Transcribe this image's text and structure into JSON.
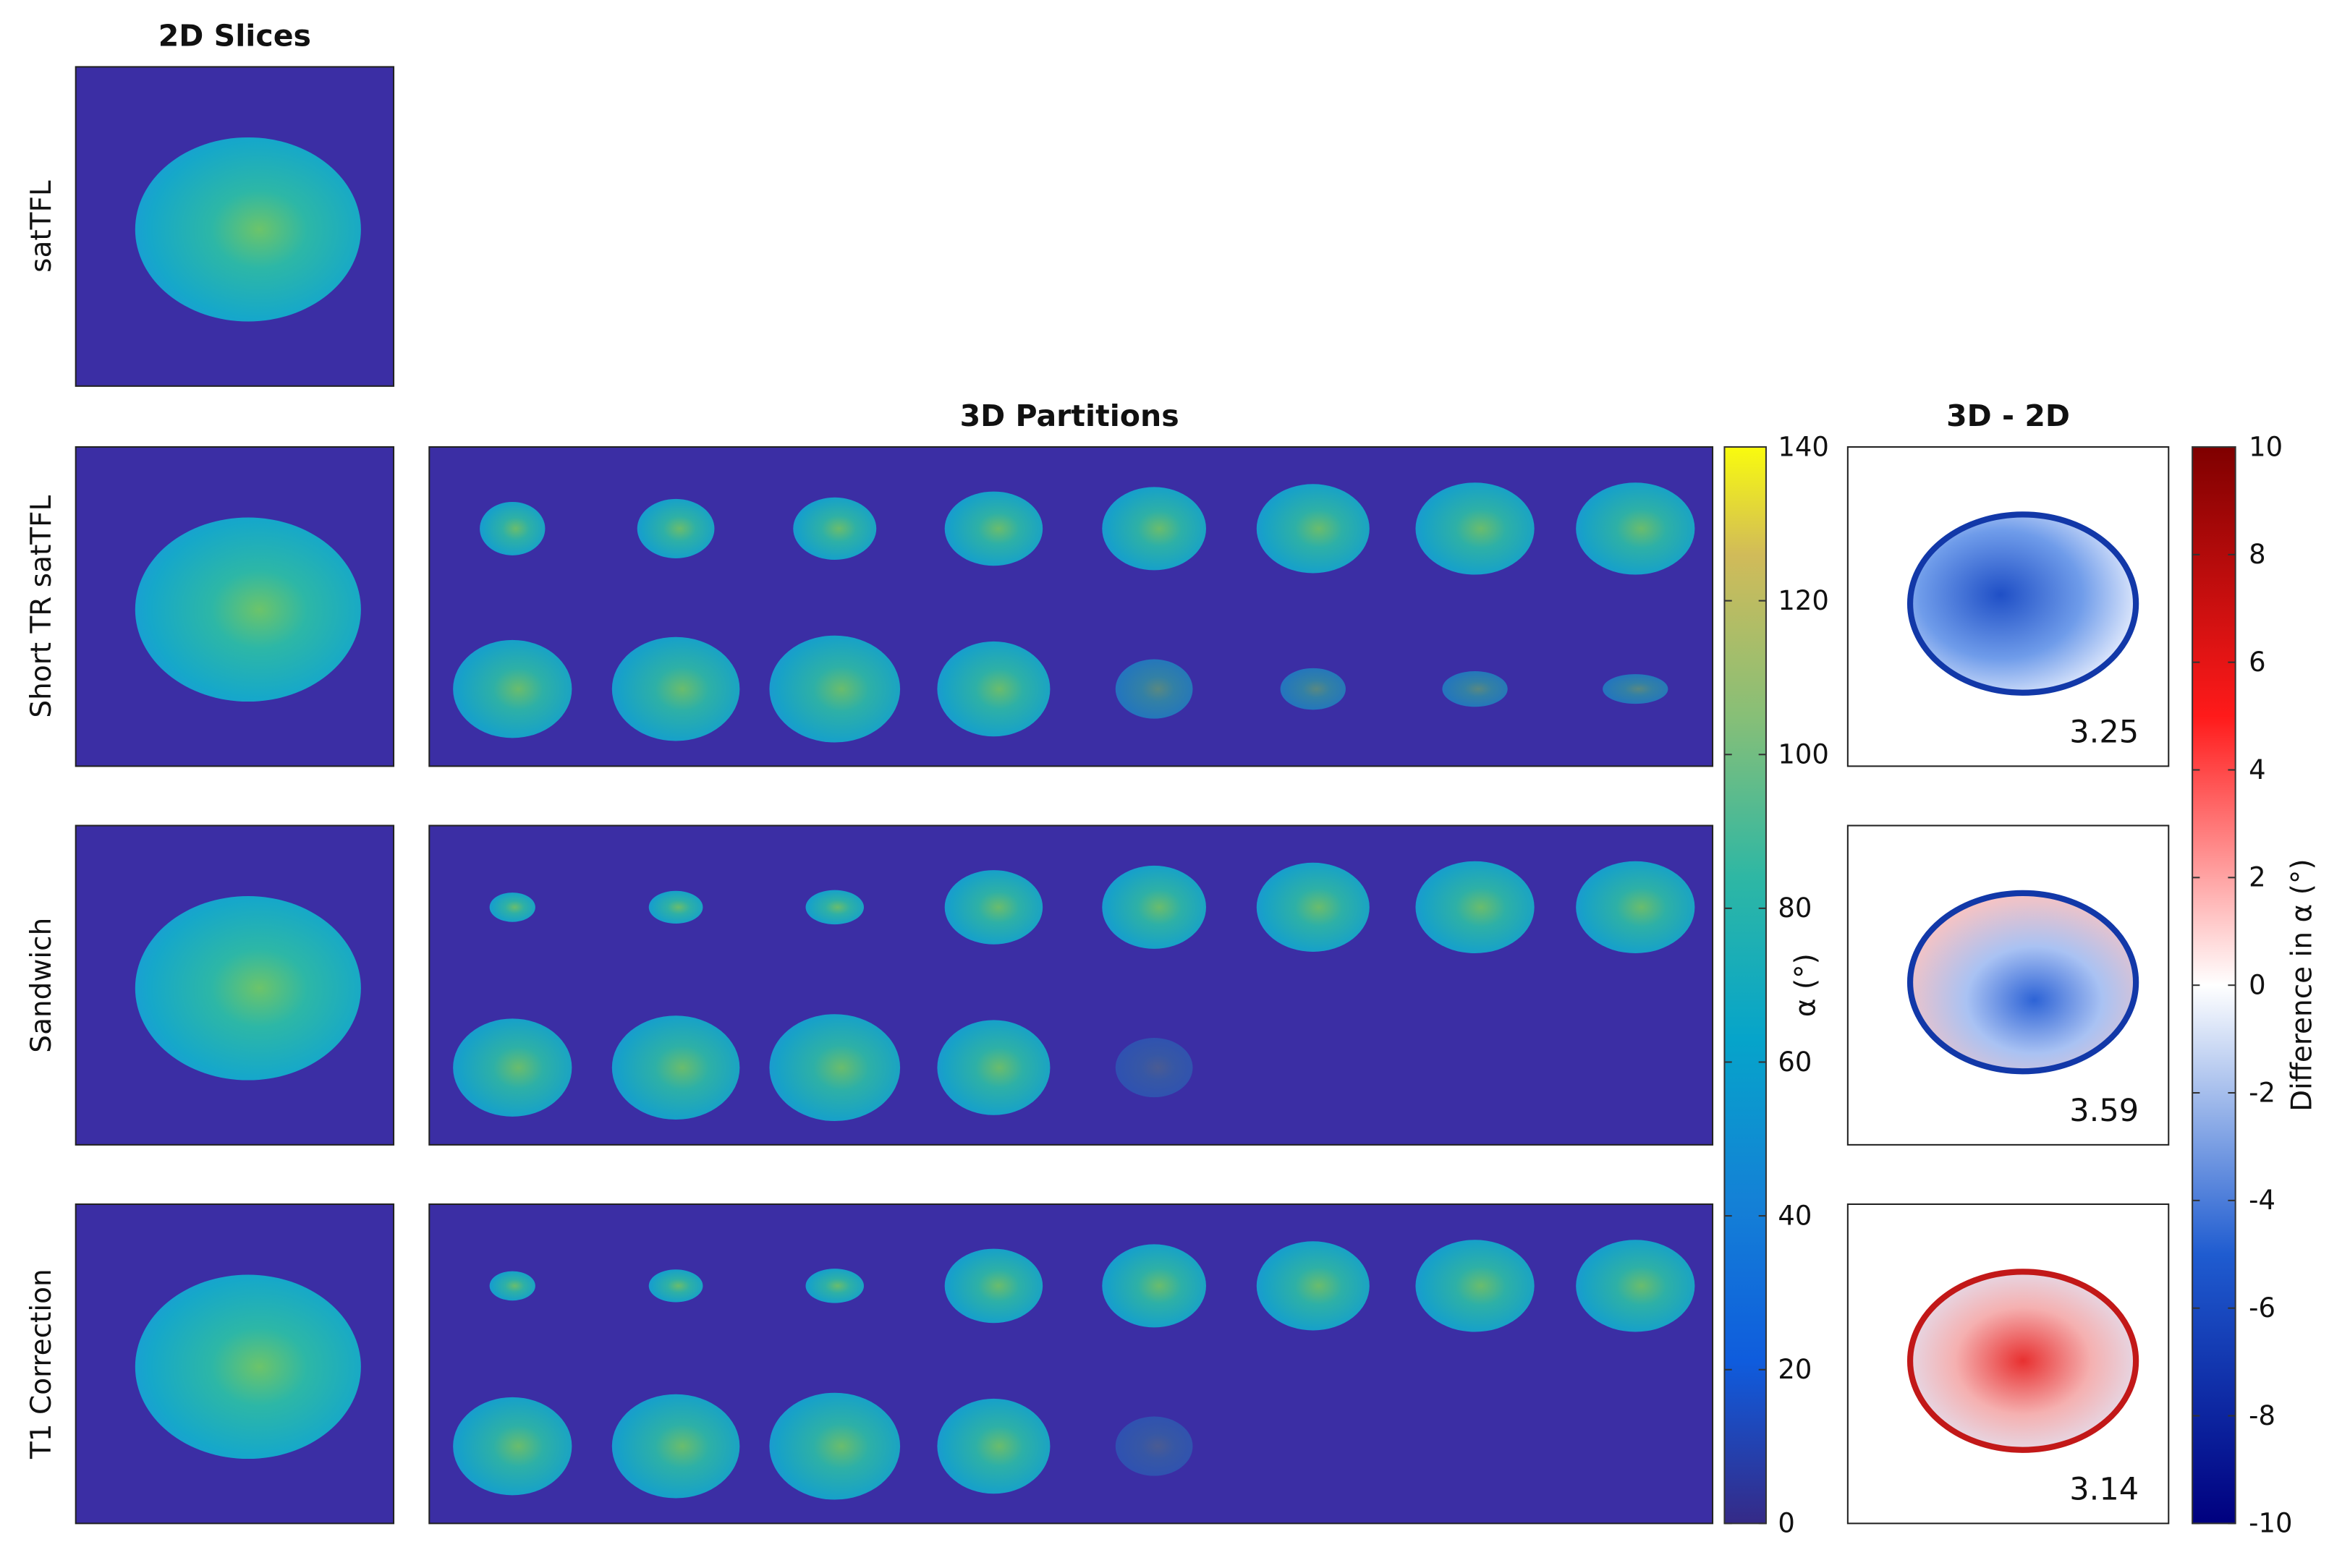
{
  "headers": {
    "slices_2d": "2D Slices",
    "partitions_3d": "3D Partitions",
    "difference": "3D - 2D"
  },
  "rows": [
    {
      "label": "satTFL"
    },
    {
      "label": "Short TR satTFL",
      "difference_value": 3.25
    },
    {
      "label": "Sandwich",
      "difference_value": 3.59
    },
    {
      "label": "T1 Correction",
      "difference_value": 3.14
    }
  ],
  "colorbars": [
    {
      "label": "α (°)",
      "lim": [
        0,
        140
      ],
      "ticks": [
        0,
        20,
        40,
        60,
        80,
        100,
        120,
        140
      ]
    },
    {
      "label": "Difference in α (°)",
      "lim": [
        -10,
        10
      ],
      "ticks": [
        -10,
        -8,
        -6,
        -4,
        -2,
        0,
        2,
        4,
        6,
        8,
        10
      ]
    }
  ]
}
